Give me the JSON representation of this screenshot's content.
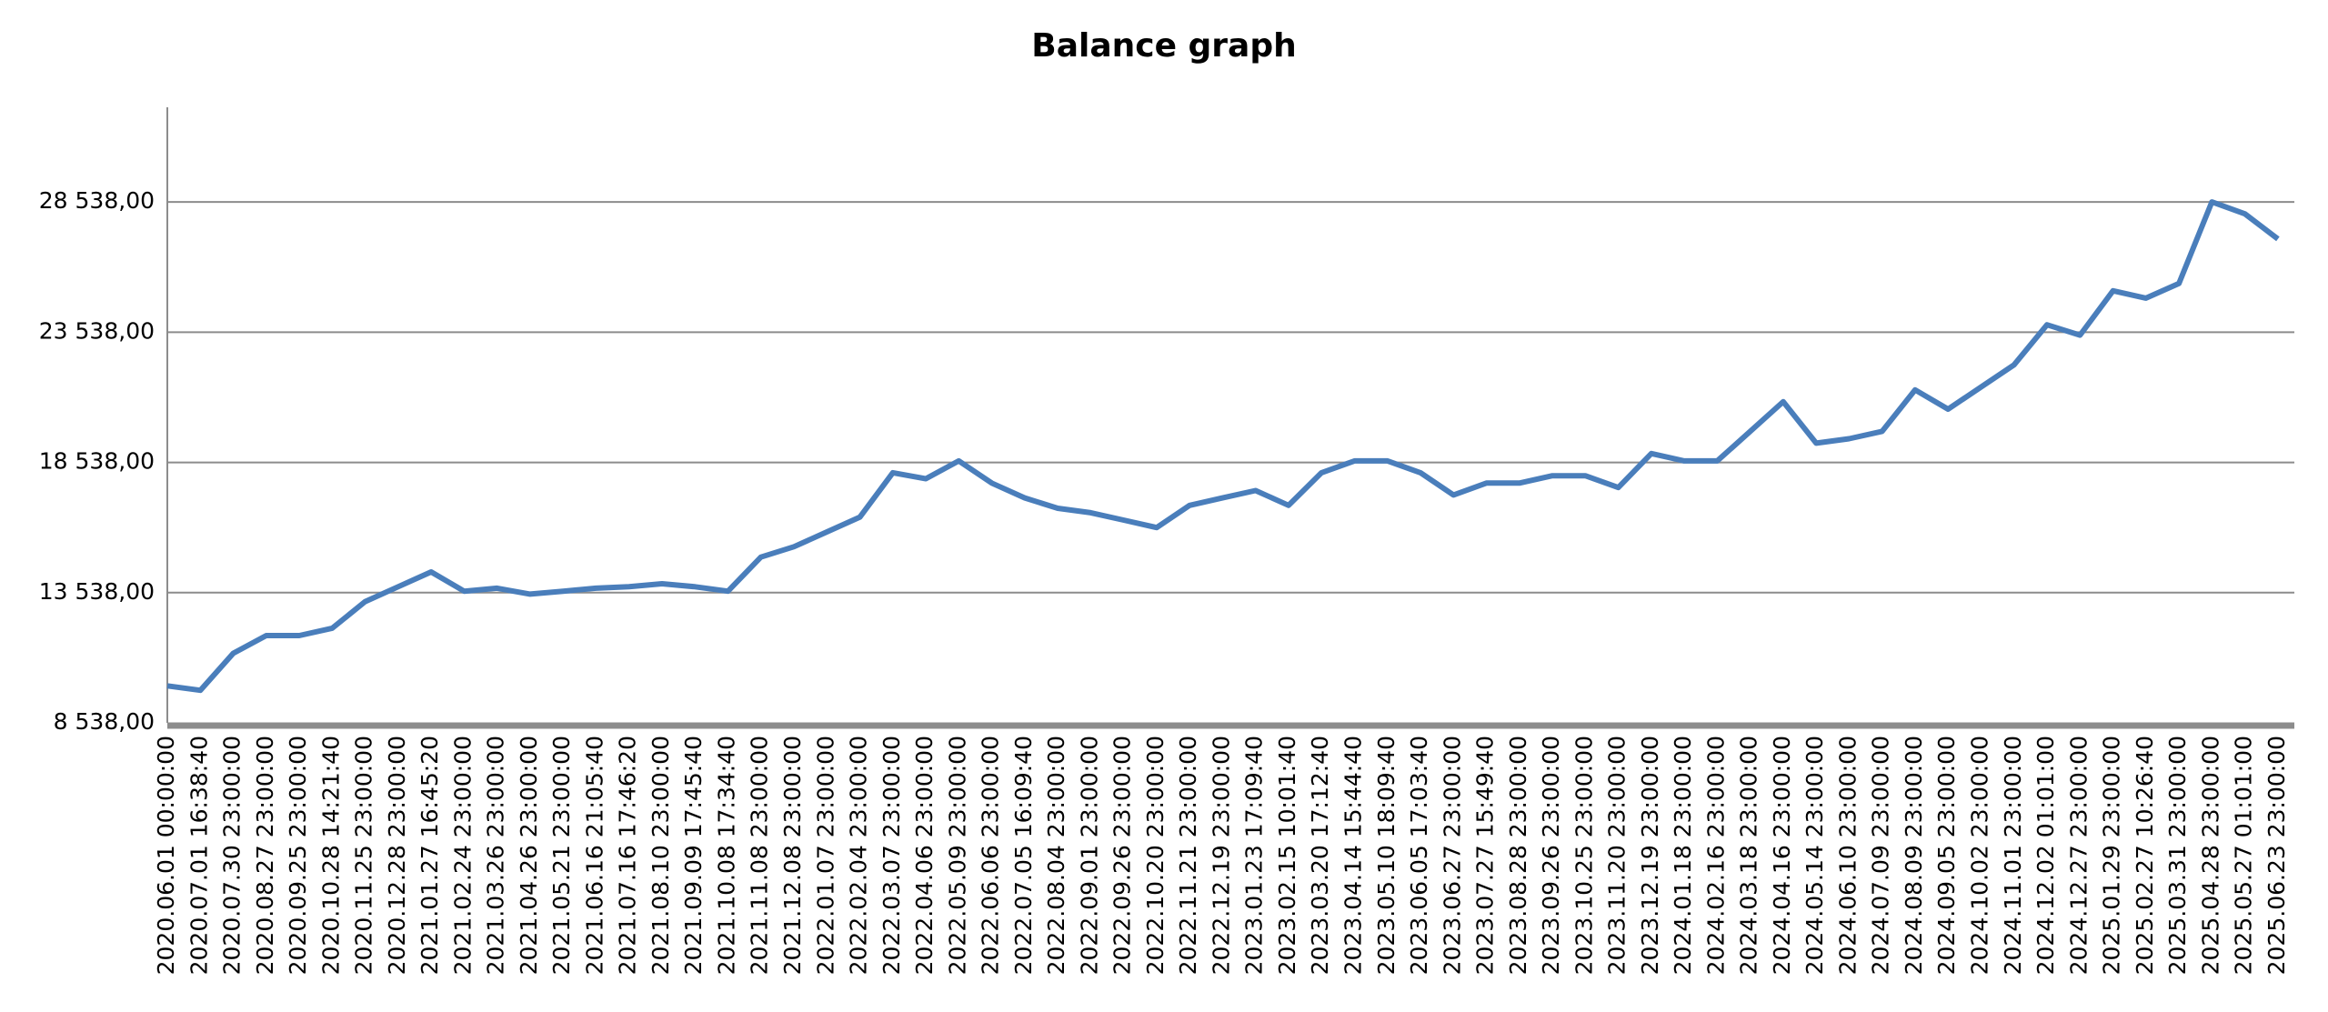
{
  "chart_data": {
    "type": "line",
    "title": "Balance graph",
    "categories": [
      "2020.06.01 00:00:00",
      "2020.07.01 16:38:40",
      "2020.07.30 23:00:00",
      "2020.08.27 23:00:00",
      "2020.09.25 23:00:00",
      "2020.10.28 14:21:40",
      "2020.11.25 23:00:00",
      "2020.12.28 23:00:00",
      "2021.01.27 16:45:20",
      "2021.02.24 23:00:00",
      "2021.03.26 23:00:00",
      "2021.04.26 23:00:00",
      "2021.05.21 23:00:00",
      "2021.06.16 21:05:40",
      "2021.07.16 17:46:20",
      "2021.08.10 23:00:00",
      "2021.09.09 17:45:40",
      "2021.10.08 17:34:40",
      "2021.11.08 23:00:00",
      "2021.12.08 23:00:00",
      "2022.01.07 23:00:00",
      "2022.02.04 23:00:00",
      "2022.03.07 23:00:00",
      "2022.04.06 23:00:00",
      "2022.05.09 23:00:00",
      "2022.06.06 23:00:00",
      "2022.07.05 16:09:40",
      "2022.08.04 23:00:00",
      "2022.09.01 23:00:00",
      "2022.09.26 23:00:00",
      "2022.10.20 23:00:00",
      "2022.11.21 23:00:00",
      "2022.12.19 23:00:00",
      "2023.01.23 17:09:40",
      "2023.02.15 10:01:40",
      "2023.03.20 17:12:40",
      "2023.04.14 15:44:40",
      "2023.05.10 18:09:40",
      "2023.06.05 17:03:40",
      "2023.06.27 23:00:00",
      "2023.07.27 15:49:40",
      "2023.08.28 23:00:00",
      "2023.09.26 23:00:00",
      "2023.10.25 23:00:00",
      "2023.11.20 23:00:00",
      "2023.12.19 23:00:00",
      "2024.01.18 23:00:00",
      "2024.02.16 23:00:00",
      "2024.03.18 23:00:00",
      "2024.04.16 23:00:00",
      "2024.05.14 23:00:00",
      "2024.06.10 23:00:00",
      "2024.07.09 23:00:00",
      "2024.08.09 23:00:00",
      "2024.09.05 23:00:00",
      "2024.10.02 23:00:00",
      "2024.11.01 23:00:00",
      "2024.12.02 01:01:00",
      "2024.12.27 23:00:00",
      "2025.01.29 23:00:00",
      "2025.02.27 10:26:40",
      "2025.03.31 23:00:00",
      "2025.04.28 23:00:00",
      "2025.05.27 01:01:00",
      "2025.06.23 23:00:00"
    ],
    "series": [
      {
        "name": "Balance",
        "color": "#4a7ebb",
        "values": [
          9958,
          9788,
          11209,
          11890,
          11890,
          12174,
          13197,
          13765,
          14333,
          13595,
          13708,
          13481,
          13595,
          13708,
          13765,
          13879,
          13765,
          13595,
          14902,
          15300,
          15868,
          16436,
          18141,
          17913,
          18595,
          17743,
          17174,
          16777,
          16606,
          16322,
          16038,
          16890,
          17174,
          17458,
          16890,
          18141,
          18595,
          18595,
          18141,
          17288,
          17743,
          17743,
          18027,
          18027,
          17572,
          18879,
          18595,
          18595,
          19731,
          20868,
          19277,
          19447,
          19731,
          21322,
          20584,
          21436,
          22288,
          23822,
          23424,
          25129,
          24845,
          25413,
          28538,
          28083,
          27118
        ]
      }
    ],
    "ylim": [
      8538,
      32174
    ],
    "yticks": [
      {
        "value": 8538,
        "label": "8 538,00"
      },
      {
        "value": 13538,
        "label": "13 538,00"
      },
      {
        "value": 18538,
        "label": "18 538,00"
      },
      {
        "value": 23538,
        "label": "23 538,00"
      },
      {
        "value": 28538,
        "label": "28 538,00"
      }
    ],
    "grid": true
  }
}
